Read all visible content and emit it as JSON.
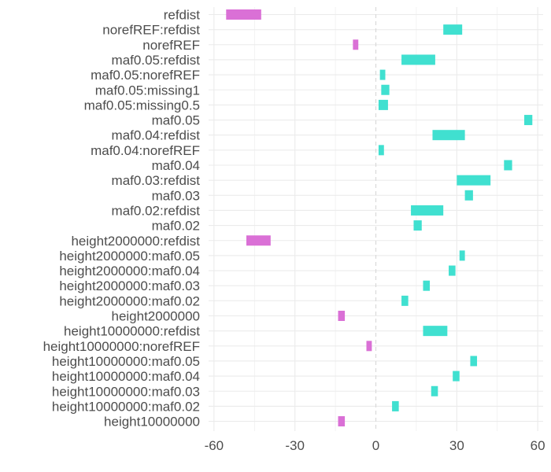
{
  "chart_data": {
    "type": "bar",
    "orientation": "horizontal",
    "bar_style": "floating-interval",
    "title": "",
    "xlabel": "",
    "ylabel": "",
    "xlim": [
      -62,
      62
    ],
    "x_ticks": [
      -60,
      -30,
      0,
      30,
      60
    ],
    "x_tick_labels": [
      "-60",
      "-30",
      "0",
      "30",
      "60"
    ],
    "grid": true,
    "zero_line": "dashed",
    "colors": {
      "negative": "#da70d6",
      "positive": "#40e0d0",
      "grid": "#ebebeb",
      "zero_line": "#d9d9d9"
    },
    "categories": [
      "refdist",
      "norefREF:refdist",
      "norefREF",
      "maf0.05:refdist",
      "maf0.05:norefREF",
      "maf0.05:missing1",
      "maf0.05:missing0.5",
      "maf0.05",
      "maf0.04:refdist",
      "maf0.04:norefREF",
      "maf0.04",
      "maf0.03:refdist",
      "maf0.03",
      "maf0.02:refdist",
      "maf0.02",
      "height2000000:refdist",
      "height2000000:maf0.05",
      "height2000000:maf0.04",
      "height2000000:maf0.03",
      "height2000000:maf0.02",
      "height2000000",
      "height10000000:refdist",
      "height10000000:norefREF",
      "height10000000:maf0.05",
      "height10000000:maf0.04",
      "height10000000:maf0.03",
      "height10000000:maf0.02",
      "height10000000"
    ],
    "intervals": [
      [
        -55.5,
        -42.5
      ],
      [
        25.0,
        32.0
      ],
      [
        -8.5,
        -6.5
      ],
      [
        9.5,
        22.0
      ],
      [
        1.5,
        3.5
      ],
      [
        2.0,
        5.0
      ],
      [
        1.0,
        4.5
      ],
      [
        55.0,
        58.0
      ],
      [
        21.0,
        33.0
      ],
      [
        1.0,
        3.0
      ],
      [
        47.5,
        50.5
      ],
      [
        30.0,
        42.5
      ],
      [
        33.0,
        36.0
      ],
      [
        13.0,
        25.0
      ],
      [
        14.0,
        17.0
      ],
      [
        -48.0,
        -39.0
      ],
      [
        31.0,
        33.0
      ],
      [
        27.0,
        29.5
      ],
      [
        17.5,
        20.0
      ],
      [
        9.5,
        12.0
      ],
      [
        -14.0,
        -11.5
      ],
      [
        17.5,
        26.5
      ],
      [
        -3.5,
        -1.5
      ],
      [
        35.0,
        37.5
      ],
      [
        28.5,
        31.0
      ],
      [
        20.5,
        23.0
      ],
      [
        6.0,
        8.5
      ],
      [
        -14.0,
        -11.5
      ]
    ]
  }
}
